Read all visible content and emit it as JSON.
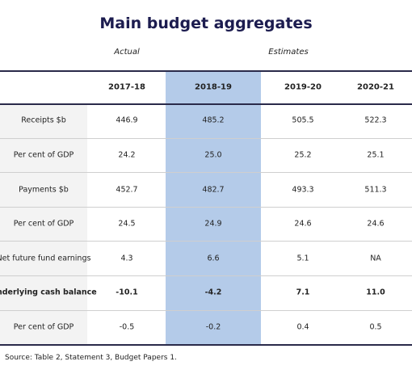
{
  "title": "Main budget aggregates",
  "column_groups": [
    "Actual",
    "Estimates"
  ],
  "table": {
    "columns": [
      "2017-18",
      "2018-19",
      "2019-20",
      "2020-21"
    ],
    "rows": [
      {
        "label": "Receipts $b",
        "values": [
          "446.9",
          "485.2",
          "505.5",
          "522.3"
        ]
      },
      {
        "label": "Per cent of GDP",
        "values": [
          "24.2",
          "25.0",
          "25.2",
          "25.1"
        ]
      },
      {
        "label": "Payments $b",
        "values": [
          "452.7",
          "482.7",
          "493.3",
          "511.3"
        ]
      },
      {
        "label": "Per cent of GDP",
        "values": [
          "24.5",
          "24.9",
          "24.6",
          "24.6"
        ]
      },
      {
        "label": "Net future fund earnings",
        "values": [
          "4.3",
          "6.6",
          "5.1",
          "NA"
        ]
      },
      {
        "label": "Underlying cash balance",
        "values": [
          "-10.1",
          "-4.2",
          "7.1",
          "11.0"
        ]
      },
      {
        "label": "Per cent of GDP",
        "values": [
          "-0.5",
          "-0.2",
          "0.4",
          "0.5"
        ]
      }
    ]
  },
  "source": "Source: Table 2, Statement 3, Budget Papers 1."
}
